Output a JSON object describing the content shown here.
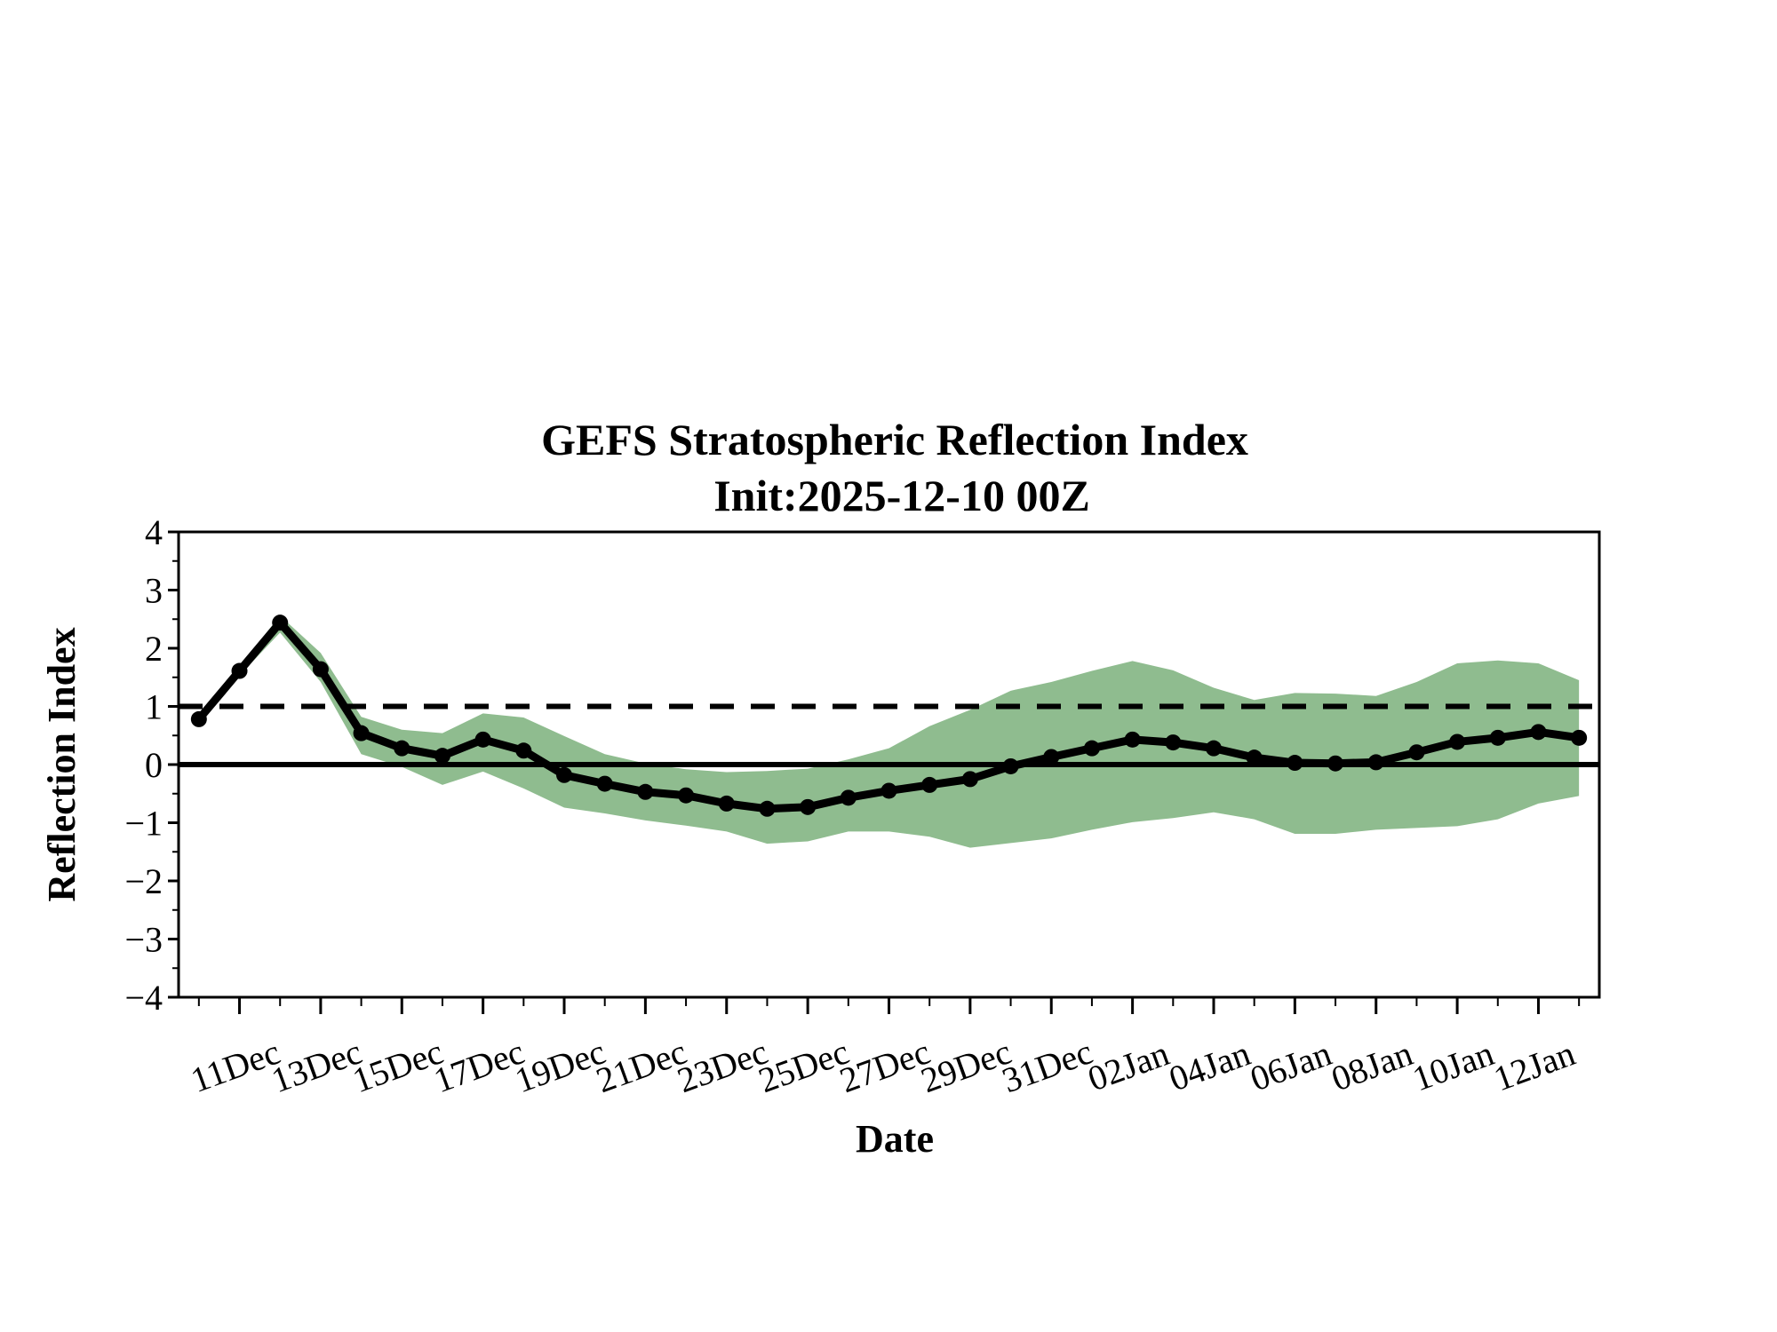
{
  "chart_data": {
    "type": "line",
    "title": "GEFS Stratospheric Reflection Index",
    "subtitle": "Init:2025-12-10 00Z",
    "xlabel": "Date",
    "ylabel": "Reflection Index",
    "ylim": [
      -4,
      4
    ],
    "yticks": [
      4,
      3,
      2,
      1,
      0,
      -1,
      -2,
      -3,
      -4
    ],
    "ytick_labels": [
      "4",
      "3",
      "2",
      "1",
      "0",
      "−1",
      "−2",
      "−3",
      "−4"
    ],
    "xlim_days": [
      -0.5,
      34.5
    ],
    "xtick_labels": [
      "11Dec",
      "13Dec",
      "15Dec",
      "17Dec",
      "19Dec",
      "21Dec",
      "23Dec",
      "25Dec",
      "27Dec",
      "29Dec",
      "31Dec",
      "02Jan",
      "04Jan",
      "06Jan",
      "08Jan",
      "10Jan",
      "12Jan"
    ],
    "xtick_days": [
      1,
      3,
      5,
      7,
      9,
      11,
      13,
      15,
      17,
      19,
      21,
      23,
      25,
      27,
      29,
      31,
      33
    ],
    "x_start": "10Dec",
    "reference_lines": [
      {
        "name": "zero",
        "y": 0,
        "style": "solid"
      },
      {
        "name": "threshold",
        "y": 1,
        "style": "dashed"
      }
    ],
    "series": [
      {
        "name": "ensemble mean",
        "color": "#000000",
        "values": [
          0.78,
          1.61,
          2.44,
          1.64,
          0.54,
          0.28,
          0.15,
          0.43,
          0.24,
          -0.18,
          -0.33,
          -0.47,
          -0.53,
          -0.67,
          -0.76,
          -0.73,
          -0.57,
          -0.45,
          -0.35,
          -0.25,
          -0.03,
          0.13,
          0.28,
          0.43,
          0.38,
          0.28,
          0.12,
          0.03,
          0.02,
          0.04,
          0.21,
          0.39,
          0.46,
          0.56,
          0.46
        ]
      }
    ],
    "band": {
      "name": "ensemble spread",
      "color": "#8fbc8f",
      "upper": [
        0.83,
        1.69,
        2.56,
        1.92,
        0.82,
        0.6,
        0.54,
        0.88,
        0.81,
        0.49,
        0.18,
        0.02,
        -0.08,
        -0.13,
        -0.11,
        -0.07,
        0.09,
        0.28,
        0.66,
        0.94,
        1.27,
        1.42,
        1.61,
        1.78,
        1.62,
        1.32,
        1.11,
        1.23,
        1.22,
        1.18,
        1.42,
        1.74,
        1.79,
        1.74,
        1.45
      ],
      "lower": [
        0.73,
        1.53,
        2.27,
        1.42,
        0.18,
        -0.04,
        -0.35,
        -0.12,
        -0.41,
        -0.74,
        -0.84,
        -0.96,
        -1.05,
        -1.15,
        -1.36,
        -1.32,
        -1.15,
        -1.15,
        -1.24,
        -1.43,
        -1.35,
        -1.27,
        -1.12,
        -0.99,
        -0.92,
        -0.82,
        -0.94,
        -1.19,
        -1.19,
        -1.12,
        -1.09,
        -1.06,
        -0.94,
        -0.67,
        -0.54
      ]
    }
  }
}
